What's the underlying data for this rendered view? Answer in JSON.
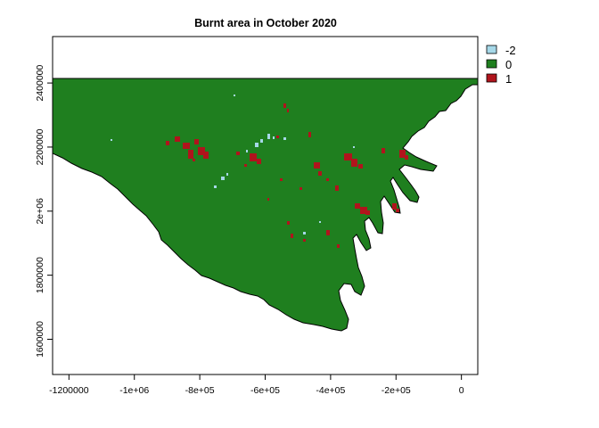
{
  "chart_data": {
    "type": "raster-map",
    "title": "Burnt area in October 2020",
    "xlabel": "",
    "ylabel": "",
    "xlim": [
      -1250000,
      50000
    ],
    "ylim": [
      1490000,
      2545000
    ],
    "x_ticks": [
      {
        "value": -1200000,
        "label": "-1200000"
      },
      {
        "value": -1000000,
        "label": "-1e+06"
      },
      {
        "value": -800000,
        "label": "-8e+05"
      },
      {
        "value": -600000,
        "label": "-6e+05"
      },
      {
        "value": -400000,
        "label": "-4e+05"
      },
      {
        "value": -200000,
        "label": "-2e+05"
      },
      {
        "value": 0,
        "label": "0"
      }
    ],
    "y_ticks": [
      {
        "value": 1600000,
        "label": "1600000"
      },
      {
        "value": 1800000,
        "label": "1800000"
      },
      {
        "value": 2000000,
        "label": "2e+06"
      },
      {
        "value": 2200000,
        "label": "2200000"
      },
      {
        "value": 2400000,
        "label": "2400000"
      }
    ],
    "legend": {
      "placement": "top-right",
      "items": [
        {
          "label": "-2",
          "color": "#a6d8e8"
        },
        {
          "label": "0",
          "color": "#1f7f1f"
        },
        {
          "label": "1",
          "color": "#b0141c"
        }
      ]
    },
    "grid": false
  }
}
